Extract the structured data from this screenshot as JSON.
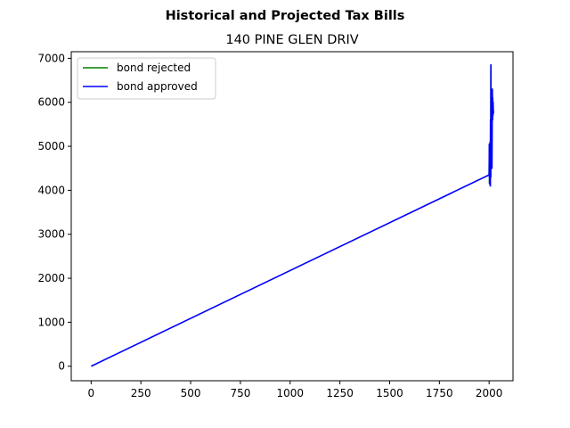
{
  "chart_data": {
    "type": "line",
    "title": "Historical and Projected Tax Bills",
    "subtitle": "140 PINE GLEN DRIV",
    "xlabel": "",
    "ylabel": "",
    "xlim": [
      -100,
      2120
    ],
    "ylim": [
      -330,
      7150
    ],
    "xticks": [
      0,
      250,
      500,
      750,
      1000,
      1250,
      1500,
      1750,
      2000
    ],
    "yticks": [
      0,
      1000,
      2000,
      3000,
      4000,
      5000,
      6000,
      7000
    ],
    "grid": false,
    "legend_position": "top-left",
    "series": [
      {
        "name": "bond rejected",
        "color": "#008000",
        "x": [
          2000,
          2001,
          2002,
          2003,
          2004,
          2005,
          2006,
          2007,
          2008,
          2009,
          2010,
          2011,
          2012,
          2013,
          2014,
          2015,
          2016,
          2017,
          2018,
          2019,
          2020,
          2021,
          2022
        ],
        "y": [
          4350,
          5050,
          4150,
          4700,
          4400,
          5100,
          4100,
          5600,
          4300,
          6850,
          4700,
          6300,
          5000,
          6100,
          4500,
          5400,
          6300,
          5600,
          6100,
          5700,
          6000,
          5750,
          5800
        ]
      },
      {
        "name": "bond approved",
        "color": "#0000ff",
        "x": [
          0,
          2000,
          2001,
          2002,
          2003,
          2004,
          2005,
          2006,
          2007,
          2008,
          2009,
          2010,
          2011,
          2012,
          2013,
          2014,
          2015,
          2016,
          2017,
          2018,
          2019,
          2020,
          2021,
          2022
        ],
        "y": [
          0,
          4350,
          5050,
          4150,
          4700,
          4400,
          5100,
          4100,
          5600,
          4300,
          6850,
          4700,
          6300,
          5000,
          6100,
          4500,
          5400,
          6300,
          5600,
          6100,
          5700,
          6000,
          5750,
          5800
        ]
      }
    ]
  }
}
